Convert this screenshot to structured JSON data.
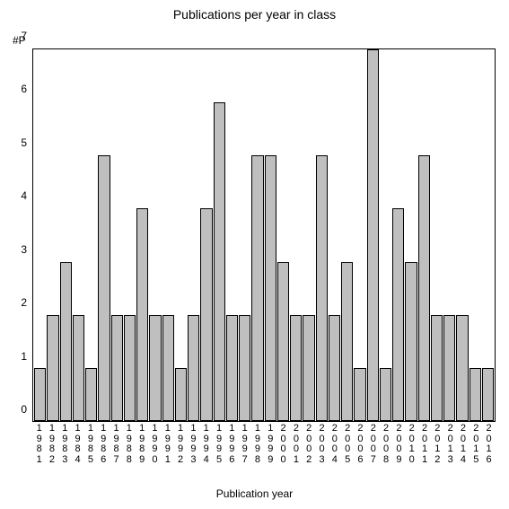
{
  "chart": {
    "type": "bar",
    "title": "Publications per year in class",
    "ylabel": "#P",
    "xlabel": "Publication year",
    "background_color": "#ffffff",
    "bar_fill": "#bfbfbf",
    "bar_stroke": "#000000",
    "axis_color": "#000000",
    "text_color": "#000000",
    "title_fontsize": 14,
    "label_fontsize": 12,
    "tick_fontsize": 11,
    "ylim": [
      0,
      7
    ],
    "ytick_step": 1,
    "categories": [
      "1981",
      "1982",
      "1983",
      "1984",
      "1985",
      "1986",
      "1987",
      "1988",
      "1989",
      "1990",
      "1991",
      "1992",
      "1993",
      "1994",
      "1995",
      "1996",
      "1997",
      "1998",
      "1999",
      "2000",
      "2001",
      "2002",
      "2003",
      "2004",
      "2005",
      "2006",
      "2007",
      "2008",
      "2009",
      "2010",
      "2011",
      "2012",
      "2013",
      "2014",
      "2015",
      "2016"
    ],
    "values": [
      1,
      2,
      3,
      2,
      1,
      5,
      2,
      2,
      4,
      2,
      2,
      1,
      2,
      4,
      6,
      2,
      2,
      5,
      5,
      3,
      2,
      2,
      5,
      2,
      3,
      1,
      7,
      1,
      4,
      3,
      5,
      2,
      2,
      2,
      1,
      1
    ]
  }
}
